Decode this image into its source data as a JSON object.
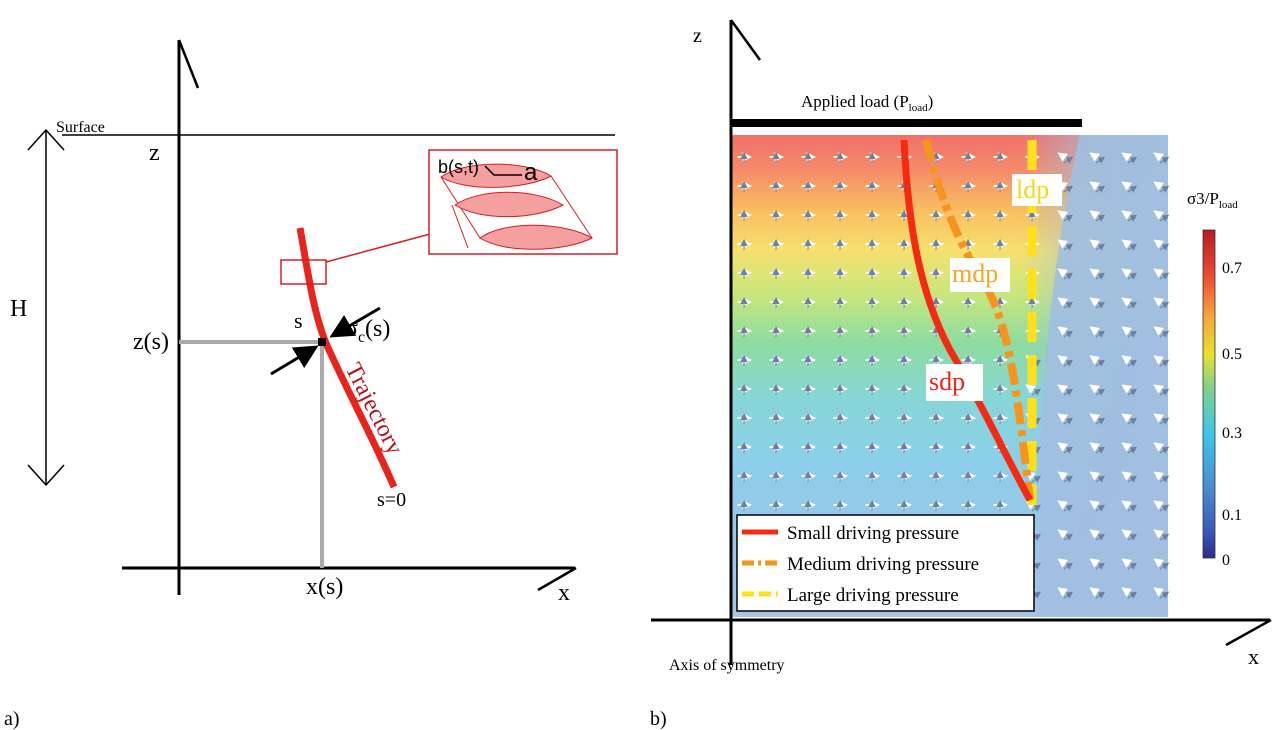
{
  "panel_a": {
    "label": "a)",
    "surface": "Surface",
    "z_axis": "z",
    "x_axis": "x",
    "height": "H",
    "z_of_s": "z(s)",
    "x_of_s": "x(s)",
    "s_label": "s",
    "sigma": "σ",
    "sigma_sub": "c",
    "sigma_arg": "(s)",
    "trajectory": "Trajectory",
    "s_zero": "s=0",
    "inset_b": "b(s,t)",
    "inset_a": "a",
    "colors": {
      "trajectory": "#e8241c",
      "inset": "#d61f26",
      "inset_fill": "#f4a0a0",
      "guide": "#aaaaaa"
    }
  },
  "panel_b": {
    "label": "b)",
    "z_axis": "z",
    "x_axis": "x",
    "axis_of_symmetry": "Axis of symmetry",
    "applied_load": "Applied load (P",
    "applied_load_sub": "load",
    "applied_load_close": ")",
    "curves": {
      "sdp": "sdp",
      "mdp": "mdp",
      "ldp": "ldp"
    },
    "legend": {
      "small": "Small driving pressure",
      "medium": "Medium driving pressure",
      "large": "Large driving pressure"
    },
    "colorbar": {
      "title_main": "σ3/P",
      "title_sub": "load",
      "ticks": [
        "0.7",
        "0.5",
        "0.3",
        "0.1",
        "0"
      ]
    },
    "colors": {
      "small": "#f42b12",
      "medium": "#f7941d",
      "large": "#ffe01a"
    }
  }
}
